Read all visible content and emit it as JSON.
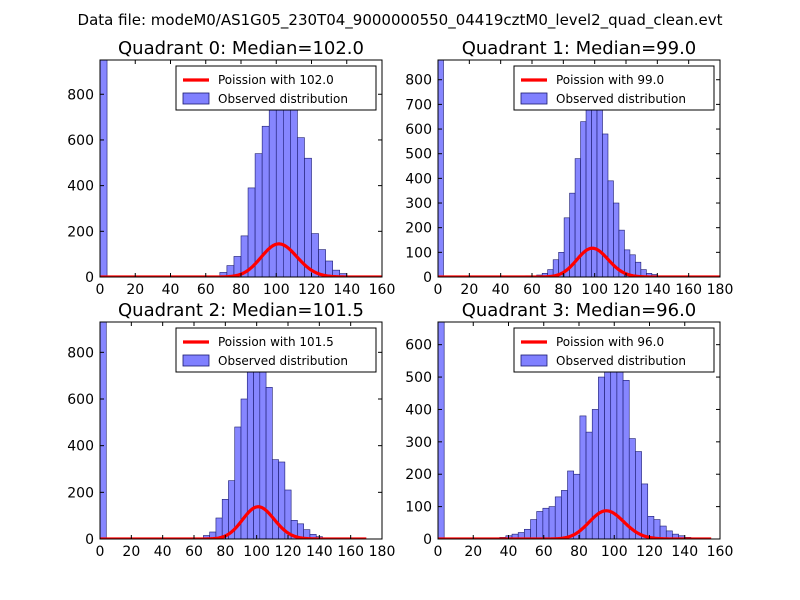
{
  "figure_title": "Data file: modeM0/AS1G05_230T04_9000000550_04419cztM0_level2_quad_clean.evt",
  "colors": {
    "bars": "#8080ff",
    "bar_edge": "#1a1a6e",
    "curve": "#ff0000"
  },
  "chart_data": [
    {
      "type": "bar",
      "title": "Quadrant 0: Median=102.0",
      "xlim": [
        0,
        160
      ],
      "ylim": [
        0,
        950
      ],
      "xticks": [
        0,
        20,
        40,
        60,
        80,
        100,
        120,
        140,
        160
      ],
      "yticks": [
        0,
        200,
        400,
        600,
        800
      ],
      "legend": {
        "location": "top-right",
        "curve_label": "Poission with 102.0",
        "bars_label": "Observed distribution"
      },
      "bin_width": 4,
      "bin_starts": [
        0,
        64,
        68,
        72,
        76,
        80,
        84,
        88,
        92,
        96,
        100,
        104,
        108,
        112,
        116,
        120,
        124,
        128,
        132,
        136,
        140
      ],
      "counts": [
        950,
        5,
        20,
        50,
        90,
        180,
        390,
        540,
        660,
        800,
        890,
        850,
        790,
        610,
        520,
        190,
        120,
        70,
        30,
        15,
        5
      ],
      "poisson_mean": 102.0,
      "curve_scale": 3670,
      "curve_x_range": [
        0,
        160
      ]
    },
    {
      "type": "bar",
      "title": "Quadrant 1: Median=99.0",
      "xlim": [
        0,
        180
      ],
      "ylim": [
        0,
        880
      ],
      "xticks": [
        0,
        20,
        40,
        60,
        80,
        100,
        120,
        140,
        160,
        180
      ],
      "yticks": [
        0,
        100,
        200,
        300,
        400,
        500,
        600,
        700,
        800
      ],
      "legend": {
        "location": "top-right",
        "curve_label": "Poission with 99.0",
        "bars_label": "Observed distribution"
      },
      "bin_width": 3.5,
      "bin_starts": [
        0,
        56,
        63,
        66.5,
        70,
        73.5,
        77,
        80.5,
        84,
        87.5,
        91,
        94.5,
        98,
        101.5,
        105,
        108.5,
        112,
        115.5,
        119,
        122.5,
        126,
        129.5,
        133,
        136.5
      ],
      "counts": [
        880,
        5,
        8,
        15,
        30,
        70,
        100,
        240,
        340,
        480,
        630,
        740,
        850,
        720,
        580,
        390,
        300,
        190,
        110,
        90,
        60,
        30,
        15,
        10
      ],
      "poisson_mean": 99.0,
      "curve_scale": 2910,
      "curve_x_range": [
        0,
        180
      ]
    },
    {
      "type": "bar",
      "title": "Quadrant 2: Median=101.5",
      "xlim": [
        0,
        180
      ],
      "ylim": [
        0,
        930
      ],
      "xticks": [
        0,
        20,
        40,
        60,
        80,
        100,
        120,
        140,
        160,
        180
      ],
      "yticks": [
        0,
        200,
        400,
        600,
        800
      ],
      "legend": {
        "location": "top-right",
        "curve_label": "Poission with 101.5",
        "bars_label": "Observed distribution"
      },
      "bin_width": 4,
      "bin_starts": [
        0,
        66,
        70,
        74,
        78,
        82,
        86,
        90,
        94,
        98,
        102,
        106,
        110,
        114,
        118,
        122,
        126,
        130,
        134,
        138
      ],
      "counts": [
        930,
        15,
        30,
        90,
        170,
        250,
        480,
        600,
        760,
        850,
        800,
        650,
        340,
        330,
        210,
        80,
        65,
        40,
        20,
        10
      ],
      "poisson_mean": 101.5,
      "curve_scale": 3490,
      "curve_x_range": [
        0,
        170
      ]
    },
    {
      "type": "bar",
      "title": "Quadrant 3: Median=96.0",
      "xlim": [
        0,
        160
      ],
      "ylim": [
        0,
        670
      ],
      "xticks": [
        0,
        20,
        40,
        60,
        80,
        100,
        120,
        140,
        160
      ],
      "yticks": [
        0,
        100,
        200,
        300,
        400,
        500,
        600
      ],
      "legend": {
        "location": "top-right",
        "curve_label": "Poission with 96.0",
        "bars_label": "Observed distribution"
      },
      "bin_width": 3.5,
      "bin_starts": [
        0,
        35,
        38.5,
        42,
        45.5,
        49,
        52.5,
        56,
        59.5,
        63,
        66.5,
        70,
        73.5,
        77,
        80.5,
        84,
        87.5,
        91,
        94.5,
        98,
        101.5,
        105,
        108.5,
        112,
        115.5,
        119,
        122.5,
        126,
        129.5,
        133,
        136.5,
        140
      ],
      "counts": [
        670,
        5,
        10,
        15,
        20,
        30,
        60,
        85,
        95,
        100,
        130,
        150,
        210,
        200,
        380,
        330,
        400,
        500,
        610,
        600,
        520,
        490,
        310,
        270,
        170,
        70,
        60,
        40,
        25,
        15,
        10,
        5
      ],
      "poisson_mean": 96.0,
      "curve_scale": 2140,
      "curve_x_range": [
        0,
        155
      ]
    }
  ]
}
